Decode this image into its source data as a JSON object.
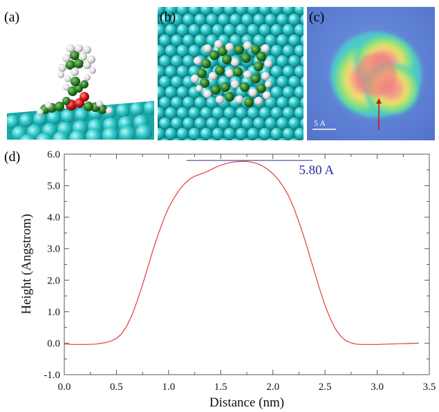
{
  "figure": {
    "panels": [
      {
        "id": "a",
        "label": "(a)"
      },
      {
        "id": "b",
        "label": "(b)"
      },
      {
        "id": "c",
        "label": "(c)",
        "scale_bar": "5 A"
      },
      {
        "id": "d",
        "label": "(d)"
      }
    ]
  },
  "colors": {
    "substrate": "#2fc7c9",
    "carbon": "#2d7d2a",
    "hydrogen": "#e6e6e6",
    "oxygen": "#d4151a",
    "profile_line": "#e03b3b",
    "height_marker": "#2a2aa0",
    "stm_background": "#5d80d8"
  },
  "chart_data": {
    "type": "line",
    "xlabel": "Distance (nm)",
    "ylabel": "Height (Angstrom)",
    "xlim": [
      0.0,
      3.5
    ],
    "ylim": [
      -1.0,
      6.0
    ],
    "xticks": [
      "0.0",
      "0.5",
      "1.0",
      "1.5",
      "2.0",
      "2.5",
      "3.0",
      "3.5"
    ],
    "yticks": [
      "-1.0",
      "0.0",
      "1.0",
      "2.0",
      "3.0",
      "4.0",
      "5.0",
      "6.0"
    ],
    "annotation": {
      "text": "5.80 A",
      "y": 5.8,
      "x_start": 1.17,
      "x_end": 2.38
    },
    "series": [
      {
        "x": [
          0.0,
          0.1,
          0.2,
          0.3,
          0.4,
          0.45,
          0.5,
          0.55,
          0.6,
          0.65,
          0.7,
          0.75,
          0.8,
          0.85,
          0.9,
          0.95,
          1.0,
          1.05,
          1.1,
          1.15,
          1.2,
          1.25,
          1.3,
          1.35,
          1.4,
          1.45,
          1.5,
          1.55,
          1.6,
          1.65,
          1.7,
          1.75,
          1.8,
          1.85,
          1.9,
          1.95,
          2.0,
          2.05,
          2.1,
          2.15,
          2.2,
          2.25,
          2.3,
          2.35,
          2.4,
          2.45,
          2.5,
          2.55,
          2.6,
          2.65,
          2.7,
          2.75,
          2.8,
          2.85,
          2.9,
          3.0,
          3.1,
          3.2,
          3.3,
          3.4
        ],
        "y": [
          -0.03,
          -0.04,
          -0.04,
          -0.03,
          0.02,
          0.07,
          0.15,
          0.3,
          0.55,
          0.9,
          1.35,
          1.85,
          2.4,
          2.95,
          3.45,
          3.9,
          4.3,
          4.6,
          4.85,
          5.05,
          5.2,
          5.3,
          5.36,
          5.42,
          5.5,
          5.58,
          5.65,
          5.7,
          5.74,
          5.76,
          5.77,
          5.77,
          5.74,
          5.7,
          5.63,
          5.52,
          5.38,
          5.2,
          4.97,
          4.68,
          4.3,
          3.85,
          3.35,
          2.8,
          2.25,
          1.7,
          1.2,
          0.78,
          0.45,
          0.22,
          0.08,
          0.01,
          -0.03,
          -0.04,
          -0.04,
          -0.04,
          -0.03,
          -0.02,
          -0.01,
          0.0
        ]
      }
    ]
  }
}
